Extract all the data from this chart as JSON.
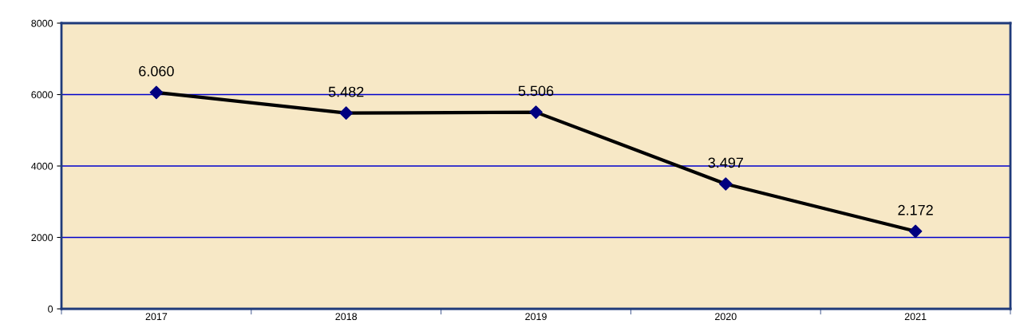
{
  "chart_data": {
    "type": "line",
    "categories": [
      "2017",
      "2018",
      "2019",
      "2020",
      "2021"
    ],
    "series": [
      {
        "color": "#000000",
        "colors": [
          "#000080",
          "#000080",
          "#000080",
          "#000080",
          "#000080"
        ],
        "values": [
          6060,
          5482,
          5506,
          3497,
          2172
        ],
        "value_labels": [
          "6.060",
          "5.482",
          "5.506",
          "3.497",
          "2.172"
        ]
      }
    ],
    "ylim": [
      0,
      8000
    ],
    "yticks": [
      0,
      2000,
      4000,
      6000,
      8000
    ],
    "grid": "y",
    "marker": "diamond",
    "line_style": "solid",
    "legend": false
  }
}
